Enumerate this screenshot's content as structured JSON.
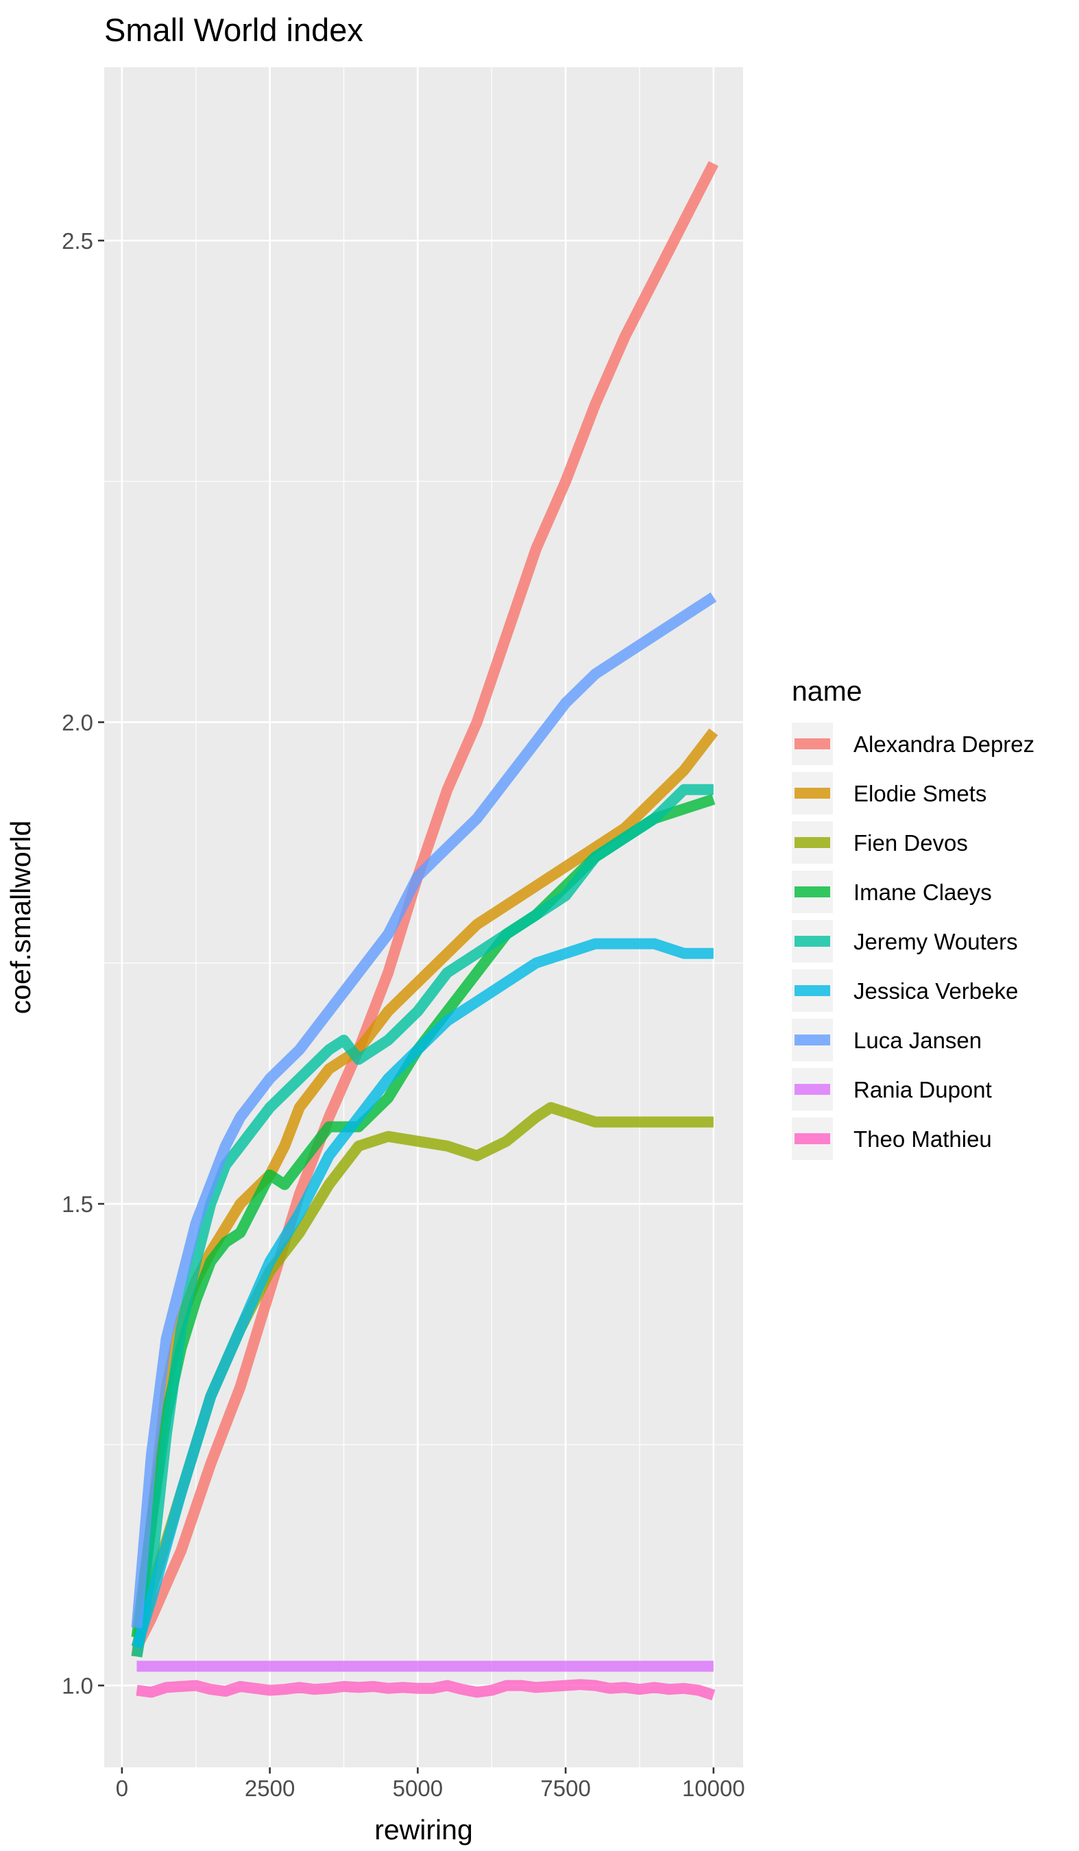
{
  "chart_data": {
    "type": "line",
    "title": "Small World index",
    "xlabel": "rewiring",
    "ylabel": "coef.smallworld",
    "xlim": [
      -300,
      10500
    ],
    "ylim": [
      0.915,
      2.68
    ],
    "x_ticks": [
      0,
      2500,
      5000,
      7500,
      10000
    ],
    "x_tick_labels": [
      "0",
      "2500",
      "5000",
      "7500",
      "10000"
    ],
    "y_ticks": [
      1.0,
      1.5,
      2.0,
      2.5
    ],
    "y_tick_labels": [
      "1.0",
      "1.5",
      "2.0",
      "2.5"
    ],
    "grid": true,
    "legend": {
      "title": "name",
      "position": "right"
    },
    "series": [
      {
        "name": "Alexandra Deprez",
        "color": "#F8766D",
        "x": [
          250,
          500,
          1000,
          1500,
          2000,
          2500,
          3000,
          3500,
          4000,
          4500,
          5000,
          5500,
          6000,
          6500,
          7000,
          7500,
          8000,
          8500,
          9000,
          9500,
          10000
        ],
        "y": [
          1.04,
          1.07,
          1.14,
          1.23,
          1.31,
          1.41,
          1.51,
          1.59,
          1.66,
          1.74,
          1.84,
          1.93,
          2.0,
          2.09,
          2.18,
          2.25,
          2.33,
          2.4,
          2.46,
          2.52,
          2.58
        ]
      },
      {
        "name": "Elodie Smets",
        "color": "#D39200",
        "x": [
          250,
          500,
          750,
          1000,
          1250,
          1500,
          2000,
          2500,
          2750,
          3000,
          3250,
          3500,
          4000,
          4500,
          5000,
          5500,
          6000,
          6500,
          7000,
          7500,
          8000,
          8500,
          9000,
          9500,
          10000
        ],
        "y": [
          1.03,
          1.17,
          1.31,
          1.38,
          1.42,
          1.45,
          1.5,
          1.53,
          1.56,
          1.6,
          1.62,
          1.64,
          1.66,
          1.7,
          1.73,
          1.76,
          1.79,
          1.81,
          1.83,
          1.85,
          1.87,
          1.89,
          1.92,
          1.95,
          1.99
        ]
      },
      {
        "name": "Fien Devos",
        "color": "#93AA00",
        "x": [
          250,
          500,
          1000,
          1500,
          2000,
          2500,
          3000,
          3500,
          4000,
          4500,
          5000,
          5500,
          6000,
          6500,
          7000,
          7250,
          7500,
          8000,
          8500,
          9000,
          9500,
          10000
        ],
        "y": [
          1.04,
          1.1,
          1.2,
          1.3,
          1.37,
          1.43,
          1.47,
          1.52,
          1.56,
          1.57,
          1.565,
          1.56,
          1.55,
          1.565,
          1.59,
          1.6,
          1.595,
          1.585,
          1.585,
          1.585,
          1.585,
          1.585
        ]
      },
      {
        "name": "Imane Claeys",
        "color": "#00BA38",
        "x": [
          250,
          500,
          750,
          1000,
          1250,
          1500,
          1750,
          2000,
          2250,
          2500,
          2750,
          3000,
          3500,
          4000,
          4500,
          5000,
          5500,
          6000,
          6500,
          7000,
          7500,
          8000,
          8500,
          9000,
          9500,
          10000
        ],
        "y": [
          1.05,
          1.17,
          1.28,
          1.35,
          1.4,
          1.44,
          1.46,
          1.47,
          1.5,
          1.53,
          1.52,
          1.54,
          1.58,
          1.58,
          1.61,
          1.66,
          1.7,
          1.74,
          1.78,
          1.8,
          1.83,
          1.86,
          1.88,
          1.9,
          1.91,
          1.92
        ]
      },
      {
        "name": "Jeremy Wouters",
        "color": "#00C19F",
        "x": [
          250,
          500,
          750,
          1000,
          1250,
          1500,
          1750,
          2000,
          2500,
          3000,
          3500,
          3750,
          4000,
          4500,
          5000,
          5500,
          6000,
          6500,
          7000,
          7500,
          8000,
          8500,
          9000,
          9500,
          10000
        ],
        "y": [
          1.03,
          1.12,
          1.26,
          1.37,
          1.44,
          1.5,
          1.54,
          1.56,
          1.6,
          1.63,
          1.66,
          1.67,
          1.65,
          1.67,
          1.7,
          1.74,
          1.76,
          1.78,
          1.8,
          1.82,
          1.86,
          1.88,
          1.9,
          1.93,
          1.93
        ]
      },
      {
        "name": "Jessica Verbeke",
        "color": "#00B9E3",
        "x": [
          250,
          500,
          1000,
          1500,
          2000,
          2500,
          3000,
          3500,
          4000,
          4500,
          5000,
          5500,
          6000,
          6500,
          7000,
          7500,
          8000,
          8500,
          9000,
          9500,
          10000
        ],
        "y": [
          1.04,
          1.09,
          1.2,
          1.3,
          1.37,
          1.44,
          1.49,
          1.55,
          1.59,
          1.63,
          1.66,
          1.69,
          1.71,
          1.73,
          1.75,
          1.76,
          1.77,
          1.77,
          1.77,
          1.76,
          1.76
        ]
      },
      {
        "name": "Luca Jansen",
        "color": "#619CFF",
        "x": [
          250,
          500,
          750,
          1000,
          1250,
          1500,
          1750,
          2000,
          2250,
          2500,
          3000,
          3500,
          4000,
          4500,
          5000,
          5500,
          6000,
          6500,
          7000,
          7500,
          8000,
          8500,
          9000,
          9500,
          10000
        ],
        "y": [
          1.06,
          1.24,
          1.36,
          1.42,
          1.48,
          1.52,
          1.56,
          1.59,
          1.61,
          1.63,
          1.66,
          1.7,
          1.74,
          1.78,
          1.84,
          1.87,
          1.9,
          1.94,
          1.98,
          2.02,
          2.05,
          2.07,
          2.09,
          2.11,
          2.13
        ]
      },
      {
        "name": "Rania Dupont",
        "color": "#DB72FB",
        "x": [
          250,
          10000
        ],
        "y": [
          1.02,
          1.02
        ]
      },
      {
        "name": "Theo Mathieu",
        "color": "#FF61C3",
        "x": [
          250,
          500,
          750,
          1000,
          1250,
          1500,
          1750,
          2000,
          2250,
          2500,
          2750,
          3000,
          3250,
          3500,
          3750,
          4000,
          4250,
          4500,
          4750,
          5000,
          5250,
          5500,
          5750,
          6000,
          6250,
          6500,
          6750,
          7000,
          7250,
          7500,
          7750,
          8000,
          8250,
          8500,
          8750,
          9000,
          9250,
          9500,
          9750,
          10000
        ],
        "y": [
          0.995,
          0.993,
          0.998,
          0.999,
          1.0,
          0.996,
          0.994,
          0.999,
          0.997,
          0.995,
          0.996,
          0.998,
          0.996,
          0.997,
          0.999,
          0.998,
          0.999,
          0.997,
          0.998,
          0.997,
          0.997,
          1.0,
          0.996,
          0.993,
          0.995,
          1.0,
          1.0,
          0.998,
          0.999,
          1.0,
          1.001,
          1.0,
          0.997,
          0.998,
          0.996,
          0.998,
          0.996,
          0.997,
          0.995,
          0.99
        ]
      }
    ]
  }
}
